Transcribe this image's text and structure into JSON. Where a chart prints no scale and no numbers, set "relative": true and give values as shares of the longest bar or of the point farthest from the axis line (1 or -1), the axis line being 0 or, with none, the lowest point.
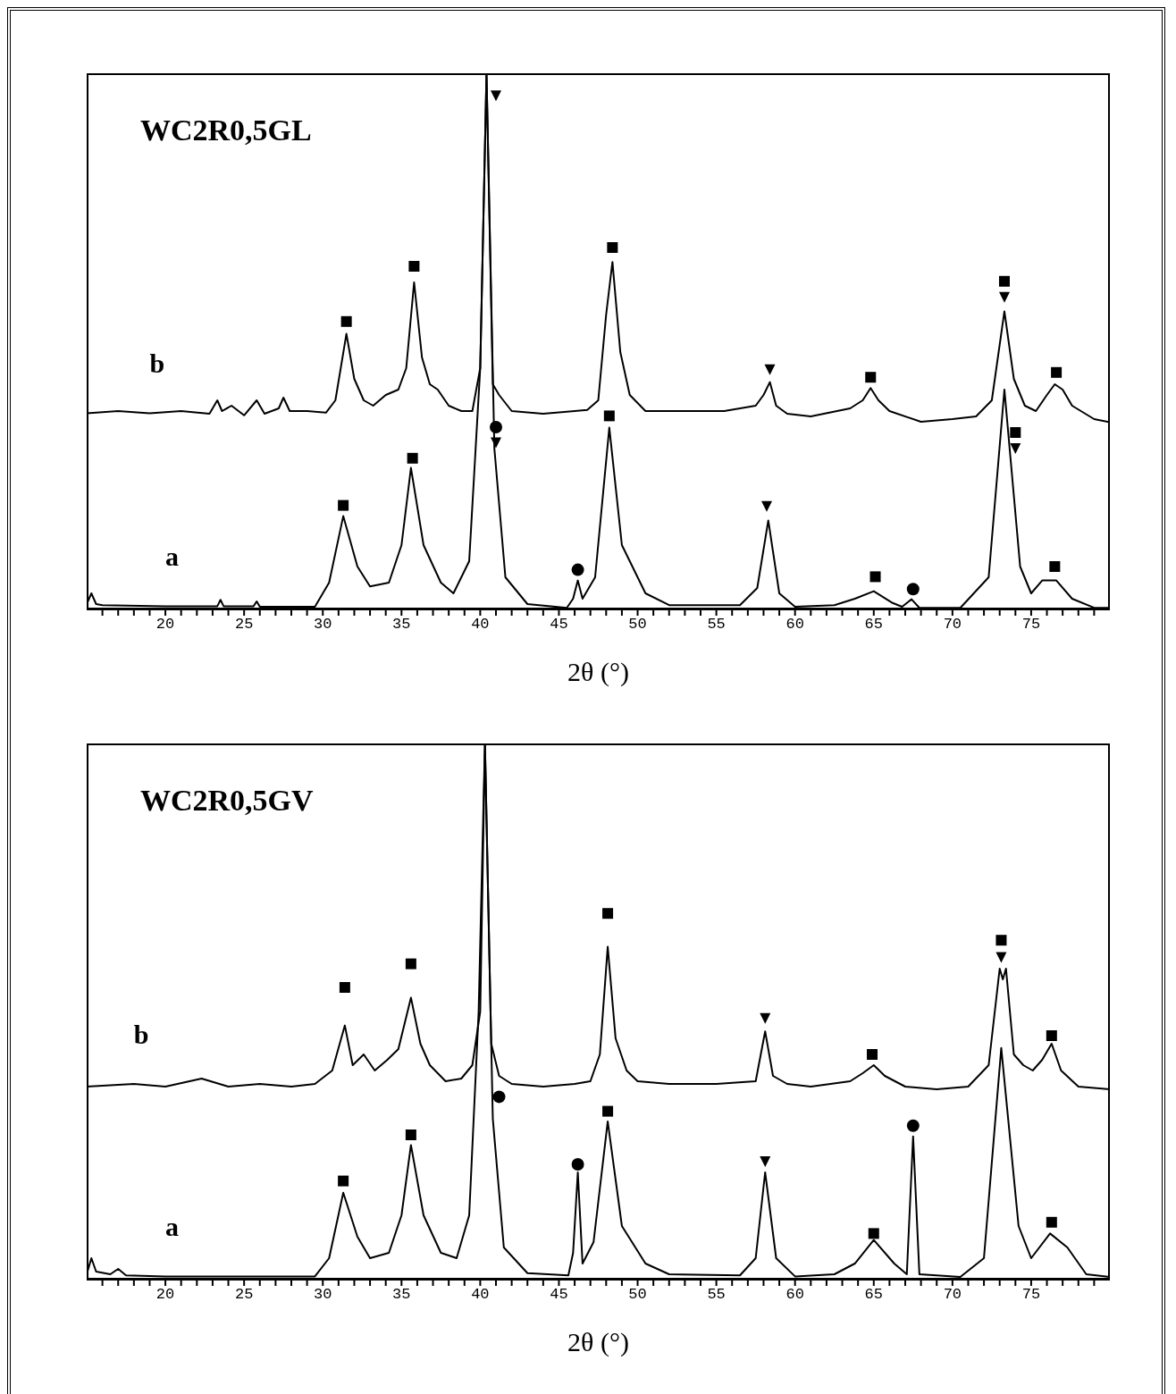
{
  "chart_data": [
    {
      "type": "line",
      "title": "WC2R0,5GL",
      "xlabel": "2θ (°)",
      "relative": true,
      "marker": "none",
      "line_style": "solid",
      "xlim": [
        15,
        80
      ],
      "xticks": [
        {
          "value": 16,
          "label": null
        },
        {
          "value": 17,
          "label": null
        },
        {
          "value": 18,
          "label": null
        },
        {
          "value": 19,
          "label": null
        },
        20,
        {
          "value": 21,
          "label": null
        },
        {
          "value": 22,
          "label": null
        },
        {
          "value": 23,
          "label": null
        },
        {
          "value": 24,
          "label": null
        },
        25,
        {
          "value": 26,
          "label": null
        },
        {
          "value": 27,
          "label": null
        },
        {
          "value": 28,
          "label": null
        },
        {
          "value": 29,
          "label": null
        },
        30,
        {
          "value": 31,
          "label": null
        },
        {
          "value": 32,
          "label": null
        },
        {
          "value": 33,
          "label": null
        },
        {
          "value": 34,
          "label": null
        },
        35,
        {
          "value": 36,
          "label": null
        },
        {
          "value": 37,
          "label": null
        },
        {
          "value": 38,
          "label": null
        },
        {
          "value": 39,
          "label": null
        },
        40,
        {
          "value": 41,
          "label": null
        },
        {
          "value": 42,
          "label": null
        },
        {
          "value": 43,
          "label": null
        },
        {
          "value": 44,
          "label": null
        },
        45,
        {
          "value": 46,
          "label": null
        },
        {
          "value": 47,
          "label": null
        },
        {
          "value": 48,
          "label": null
        },
        {
          "value": 49,
          "label": null
        },
        50,
        {
          "value": 51,
          "label": null
        },
        {
          "value": 52,
          "label": null
        },
        {
          "value": 53,
          "label": null
        },
        {
          "value": 54,
          "label": null
        },
        55,
        {
          "value": 56,
          "label": null
        },
        {
          "value": 57,
          "label": null
        },
        {
          "value": 58,
          "label": null
        },
        {
          "value": 59,
          "label": null
        },
        60,
        {
          "value": 61,
          "label": null
        },
        {
          "value": 62,
          "label": null
        },
        {
          "value": 63,
          "label": null
        },
        {
          "value": 64,
          "label": null
        },
        65,
        {
          "value": 66,
          "label": null
        },
        {
          "value": 67,
          "label": null
        },
        {
          "value": 68,
          "label": null
        },
        {
          "value": 69,
          "label": null
        },
        70,
        {
          "value": 71,
          "label": null
        },
        {
          "value": 72,
          "label": null
        },
        {
          "value": 73,
          "label": null
        },
        {
          "value": 74,
          "label": null
        },
        75,
        {
          "value": 76,
          "label": null
        },
        {
          "value": 77,
          "label": null
        },
        {
          "value": 78,
          "label": null
        },
        {
          "value": 79,
          "label": null
        }
      ],
      "series": [
        {
          "name": "a",
          "color": "#000000",
          "x": [
            15,
            15.3,
            15.6,
            16,
            20,
            23.3,
            23.5,
            23.7,
            25.6,
            25.8,
            26,
            29.5,
            30.4,
            31.3,
            32.2,
            33,
            34.2,
            35.0,
            35.6,
            36.4,
            37.5,
            38.3,
            39.3,
            40.0,
            40.4,
            40.9,
            41.6,
            43,
            45.5,
            45.9,
            46.2,
            46.5,
            47.3,
            48.2,
            49.0,
            50.5,
            52,
            56.5,
            57.6,
            58.3,
            59.0,
            60,
            62.5,
            63.8,
            65.0,
            66.2,
            66.8,
            67.4,
            67.9,
            70.5,
            72.3,
            73.3,
            74.3,
            75.0,
            75.7,
            76.6,
            77.6,
            79,
            80
          ],
          "values": [
            0.01,
            0.03,
            0.01,
            0.008,
            0.006,
            0.006,
            0.018,
            0.006,
            0.006,
            0.015,
            0.005,
            0.005,
            0.05,
            0.174,
            0.08,
            0.043,
            0.05,
            0.12,
            0.264,
            0.12,
            0.05,
            0.03,
            0.09,
            0.45,
            1,
            0.3,
            0.06,
            0.01,
            0.003,
            0.02,
            0.054,
            0.02,
            0.06,
            0.339,
            0.12,
            0.03,
            0.008,
            0.008,
            0.04,
            0.166,
            0.03,
            0.005,
            0.008,
            0.02,
            0.034,
            0.012,
            0.005,
            0.019,
            0.003,
            0.003,
            0.06,
            0.41,
            0.08,
            0.03,
            0.054,
            0.054,
            0.02,
            0.003,
            0.003
          ]
        },
        {
          "name": "b",
          "color": "#000000",
          "x": [
            15,
            17,
            19,
            21,
            22.8,
            23.3,
            23.6,
            24.2,
            25,
            25.8,
            26.3,
            27.2,
            27.5,
            27.9,
            29,
            30.2,
            30.8,
            31.5,
            32.0,
            32.6,
            33.2,
            34,
            34.8,
            35.3,
            35.8,
            36.3,
            36.8,
            37.3,
            38,
            38.8,
            39.5,
            40.0,
            40.4,
            40.8,
            41.2,
            42,
            44,
            46,
            46.8,
            47.5,
            48.0,
            48.4,
            48.9,
            49.5,
            50.5,
            53,
            55.5,
            57.5,
            58.0,
            58.4,
            58.8,
            59.5,
            61,
            63.5,
            64.3,
            64.8,
            65.3,
            66,
            68,
            70,
            71.5,
            72.5,
            73.3,
            73.9,
            74.6,
            75.3,
            76,
            76.5,
            77,
            77.6,
            79,
            80
          ],
          "values": [
            0.366,
            0.37,
            0.366,
            0.37,
            0.365,
            0.39,
            0.37,
            0.38,
            0.362,
            0.39,
            0.365,
            0.375,
            0.395,
            0.37,
            0.37,
            0.367,
            0.39,
            0.514,
            0.43,
            0.39,
            0.38,
            0.4,
            0.41,
            0.45,
            0.61,
            0.47,
            0.42,
            0.41,
            0.38,
            0.37,
            0.37,
            0.45,
            1,
            0.42,
            0.4,
            0.37,
            0.365,
            0.37,
            0.372,
            0.39,
            0.55,
            0.648,
            0.48,
            0.4,
            0.37,
            0.37,
            0.37,
            0.38,
            0.4,
            0.424,
            0.38,
            0.365,
            0.36,
            0.375,
            0.39,
            0.413,
            0.39,
            0.37,
            0.35,
            0.355,
            0.36,
            0.39,
            0.556,
            0.43,
            0.38,
            0.37,
            0.4,
            0.42,
            0.41,
            0.38,
            0.355,
            0.349
          ]
        },
        {
          "type": "scatter",
          "marker": "square",
          "color": "#000000",
          "x": [
            31.5,
            35.8,
            48.4,
            64.8,
            73.3,
            76.6,
            31.3,
            35.7,
            48.2,
            65.1,
            74.0,
            76.5
          ],
          "values": [
            0.537,
            0.64,
            0.675,
            0.433,
            0.612,
            0.442,
            0.194,
            0.282,
            0.361,
            0.061,
            0.33,
            0.08
          ]
        },
        {
          "type": "scatter",
          "marker": "triangle",
          "color": "#000000",
          "x": [
            41.0,
            58.4,
            73.3,
            41.0,
            58.2,
            74.0
          ],
          "values": [
            0.958,
            0.447,
            0.582,
            0.311,
            0.192,
            0.3
          ]
        },
        {
          "type": "scatter",
          "marker": "circle",
          "color": "#000000",
          "x": [
            41.0,
            46.2,
            67.5
          ],
          "values": [
            0.34,
            0.074,
            0.038
          ]
        }
      ]
    },
    {
      "type": "line",
      "title": "WC2R0,5GV",
      "xlabel": "2θ (°)",
      "relative": true,
      "marker": "none",
      "line_style": "solid",
      "xlim": [
        15,
        80
      ],
      "xticks": [
        {
          "value": 16,
          "label": null
        },
        {
          "value": 17,
          "label": null
        },
        {
          "value": 18,
          "label": null
        },
        {
          "value": 19,
          "label": null
        },
        20,
        {
          "value": 21,
          "label": null
        },
        {
          "value": 22,
          "label": null
        },
        {
          "value": 23,
          "label": null
        },
        {
          "value": 24,
          "label": null
        },
        25,
        {
          "value": 26,
          "label": null
        },
        {
          "value": 27,
          "label": null
        },
        {
          "value": 28,
          "label": null
        },
        {
          "value": 29,
          "label": null
        },
        30,
        {
          "value": 31,
          "label": null
        },
        {
          "value": 32,
          "label": null
        },
        {
          "value": 33,
          "label": null
        },
        {
          "value": 34,
          "label": null
        },
        35,
        {
          "value": 36,
          "label": null
        },
        {
          "value": 37,
          "label": null
        },
        {
          "value": 38,
          "label": null
        },
        {
          "value": 39,
          "label": null
        },
        40,
        {
          "value": 41,
          "label": null
        },
        {
          "value": 42,
          "label": null
        },
        {
          "value": 43,
          "label": null
        },
        {
          "value": 44,
          "label": null
        },
        45,
        {
          "value": 46,
          "label": null
        },
        {
          "value": 47,
          "label": null
        },
        {
          "value": 48,
          "label": null
        },
        {
          "value": 49,
          "label": null
        },
        50,
        {
          "value": 51,
          "label": null
        },
        {
          "value": 52,
          "label": null
        },
        {
          "value": 53,
          "label": null
        },
        {
          "value": 54,
          "label": null
        },
        55,
        {
          "value": 56,
          "label": null
        },
        {
          "value": 57,
          "label": null
        },
        {
          "value": 58,
          "label": null
        },
        {
          "value": 59,
          "label": null
        },
        60,
        {
          "value": 61,
          "label": null
        },
        {
          "value": 62,
          "label": null
        },
        {
          "value": 63,
          "label": null
        },
        {
          "value": 64,
          "label": null
        },
        65,
        {
          "value": 66,
          "label": null
        },
        {
          "value": 67,
          "label": null
        },
        {
          "value": 68,
          "label": null
        },
        {
          "value": 69,
          "label": null
        },
        70,
        {
          "value": 71,
          "label": null
        },
        {
          "value": 72,
          "label": null
        },
        {
          "value": 73,
          "label": null
        },
        {
          "value": 74,
          "label": null
        },
        75,
        {
          "value": 76,
          "label": null
        },
        {
          "value": 77,
          "label": null
        },
        {
          "value": 78,
          "label": null
        },
        {
          "value": 79,
          "label": null
        }
      ],
      "series": [
        {
          "name": "a",
          "color": "#000000",
          "x": [
            15,
            15.3,
            15.6,
            16.5,
            17,
            17.5,
            20,
            29.5,
            30.4,
            31.3,
            32.2,
            33,
            34.2,
            35.0,
            35.6,
            36.4,
            37.5,
            38.5,
            39.3,
            39.9,
            40.3,
            40.8,
            41.5,
            43,
            45.6,
            45.9,
            46.2,
            46.5,
            47.2,
            48.1,
            49.0,
            50.5,
            52,
            56.5,
            57.5,
            58.1,
            58.8,
            60,
            62.5,
            63.8,
            65.0,
            66.3,
            67.1,
            67.5,
            67.9,
            70.5,
            72,
            73.1,
            74.2,
            75.0,
            76.2,
            77.3,
            78.5,
            80
          ],
          "values": [
            0.01,
            0.04,
            0.015,
            0.01,
            0.02,
            0.008,
            0.006,
            0.006,
            0.04,
            0.162,
            0.08,
            0.04,
            0.05,
            0.12,
            0.251,
            0.12,
            0.05,
            0.04,
            0.12,
            0.5,
            1,
            0.3,
            0.06,
            0.012,
            0.008,
            0.05,
            0.2,
            0.03,
            0.07,
            0.295,
            0.1,
            0.03,
            0.01,
            0.008,
            0.04,
            0.2,
            0.04,
            0.006,
            0.01,
            0.03,
            0.074,
            0.03,
            0.01,
            0.267,
            0.01,
            0.005,
            0.04,
            0.432,
            0.1,
            0.04,
            0.086,
            0.06,
            0.01,
            0.005
          ]
        },
        {
          "name": "b",
          "color": "#000000",
          "x": [
            15,
            18,
            20,
            22.3,
            24,
            26,
            28,
            29.5,
            30.6,
            31.4,
            31.9,
            32.6,
            33.3,
            34.1,
            34.8,
            35.6,
            36.2,
            36.8,
            37.8,
            38.8,
            39.5,
            40.0,
            40.3,
            40.7,
            41.2,
            42,
            44,
            46,
            47,
            47.6,
            48.1,
            48.6,
            49.3,
            50,
            52,
            55,
            57.5,
            58.1,
            58.6,
            59.5,
            61,
            63.5,
            64.3,
            65,
            65.7,
            67,
            69,
            71,
            72.3,
            73.0,
            73.2,
            73.4,
            73.9,
            74.5,
            75.1,
            75.7,
            76.3,
            76.9,
            78,
            80
          ],
          "values": [
            0.36,
            0.365,
            0.36,
            0.375,
            0.36,
            0.365,
            0.36,
            0.365,
            0.39,
            0.474,
            0.4,
            0.42,
            0.39,
            0.41,
            0.43,
            0.526,
            0.44,
            0.4,
            0.37,
            0.375,
            0.4,
            0.5,
            1,
            0.44,
            0.38,
            0.365,
            0.36,
            0.365,
            0.37,
            0.42,
            0.621,
            0.45,
            0.39,
            0.37,
            0.365,
            0.365,
            0.37,
            0.463,
            0.38,
            0.365,
            0.36,
            0.37,
            0.385,
            0.4,
            0.38,
            0.36,
            0.355,
            0.36,
            0.4,
            0.58,
            0.56,
            0.58,
            0.42,
            0.4,
            0.39,
            0.41,
            0.44,
            0.39,
            0.36,
            0.355
          ]
        },
        {
          "type": "scatter",
          "marker": "square",
          "color": "#000000",
          "x": [
            31.4,
            35.6,
            48.1,
            64.9,
            73.1,
            76.3,
            31.3,
            35.6,
            48.1,
            65,
            76.3
          ],
          "values": [
            0.545,
            0.589,
            0.683,
            0.42,
            0.633,
            0.455,
            0.184,
            0.27,
            0.314,
            0.086,
            0.107
          ]
        },
        {
          "type": "scatter",
          "marker": "triangle",
          "color": "#000000",
          "x": [
            58.1,
            73.1,
            58.1
          ],
          "values": [
            0.487,
            0.601,
            0.22
          ]
        },
        {
          "type": "scatter",
          "marker": "circle",
          "color": "#000000",
          "x": [
            41.2,
            46.2,
            67.5
          ],
          "values": [
            0.341,
            0.215,
            0.287
          ]
        }
      ]
    }
  ]
}
